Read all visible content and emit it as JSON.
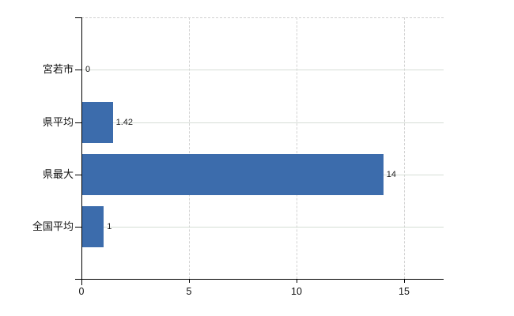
{
  "chart_data": {
    "type": "bar",
    "orientation": "horizontal",
    "title": "",
    "xlabel": "",
    "ylabel": "",
    "categories": [
      "宮若市",
      "県平均",
      "県最大",
      "全国平均"
    ],
    "values": [
      0,
      1.42,
      14,
      1
    ],
    "value_labels": [
      "0",
      "1.42",
      "14",
      "1"
    ],
    "x_ticks": [
      0,
      5,
      10,
      15
    ],
    "x_tick_labels": [
      "0",
      "5",
      "10",
      "15"
    ],
    "xlim": [
      0,
      16.8
    ],
    "grid": "on",
    "legend": "none",
    "colors": {
      "bar": "#3c6cac",
      "horizontal_gridline": "#d6ded6",
      "vertical_gridline": "#d2d2d2",
      "plot_top_border": "#cfcfcf",
      "axis": "#000000",
      "text": "#111111",
      "background": "#ffffff"
    }
  }
}
